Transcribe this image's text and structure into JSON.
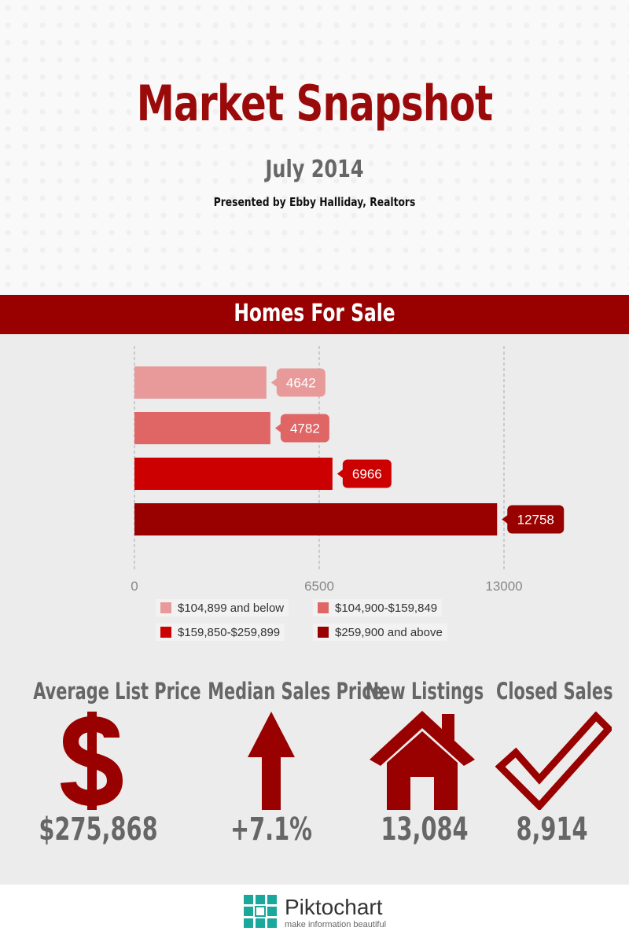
{
  "header": {
    "title": "Market Snapshot",
    "date": "July 2014",
    "presented_by": "Presented by Ebby Halliday, Realtors"
  },
  "section": {
    "title": "Homes For Sale"
  },
  "colors": {
    "brand": "#990000",
    "series": [
      "#e89a9a",
      "#e06666",
      "#cc0000",
      "#990000"
    ]
  },
  "chart_data": {
    "type": "bar",
    "orientation": "horizontal",
    "title": "Homes For Sale",
    "categories": [
      "$104,899 and below",
      "$104,900-$159,849",
      "$159,850-$259,899",
      "$259,900 and above"
    ],
    "values": [
      4642,
      4782,
      6966,
      12758
    ],
    "xlim": [
      0,
      13000
    ],
    "xticks": [
      0,
      6500,
      13000
    ],
    "grid": true,
    "legend_position": "bottom",
    "data_labels": [
      "4642",
      "4782",
      "6966",
      "12758"
    ],
    "tick_labels": [
      "0",
      "6500",
      "13000"
    ]
  },
  "stats": [
    {
      "label": "Average List Price",
      "value": "$275,868",
      "icon": "dollar-icon"
    },
    {
      "label": "Median Sales Price",
      "value": "+7.1%",
      "icon": "arrow-up-icon"
    },
    {
      "label": "New Listings",
      "value": "13,084",
      "icon": "house-icon"
    },
    {
      "label": "Closed Sales",
      "value": "8,914",
      "icon": "checkmark-icon"
    }
  ],
  "footer": {
    "brand": "Piktochart",
    "tagline": "make information beautiful"
  }
}
